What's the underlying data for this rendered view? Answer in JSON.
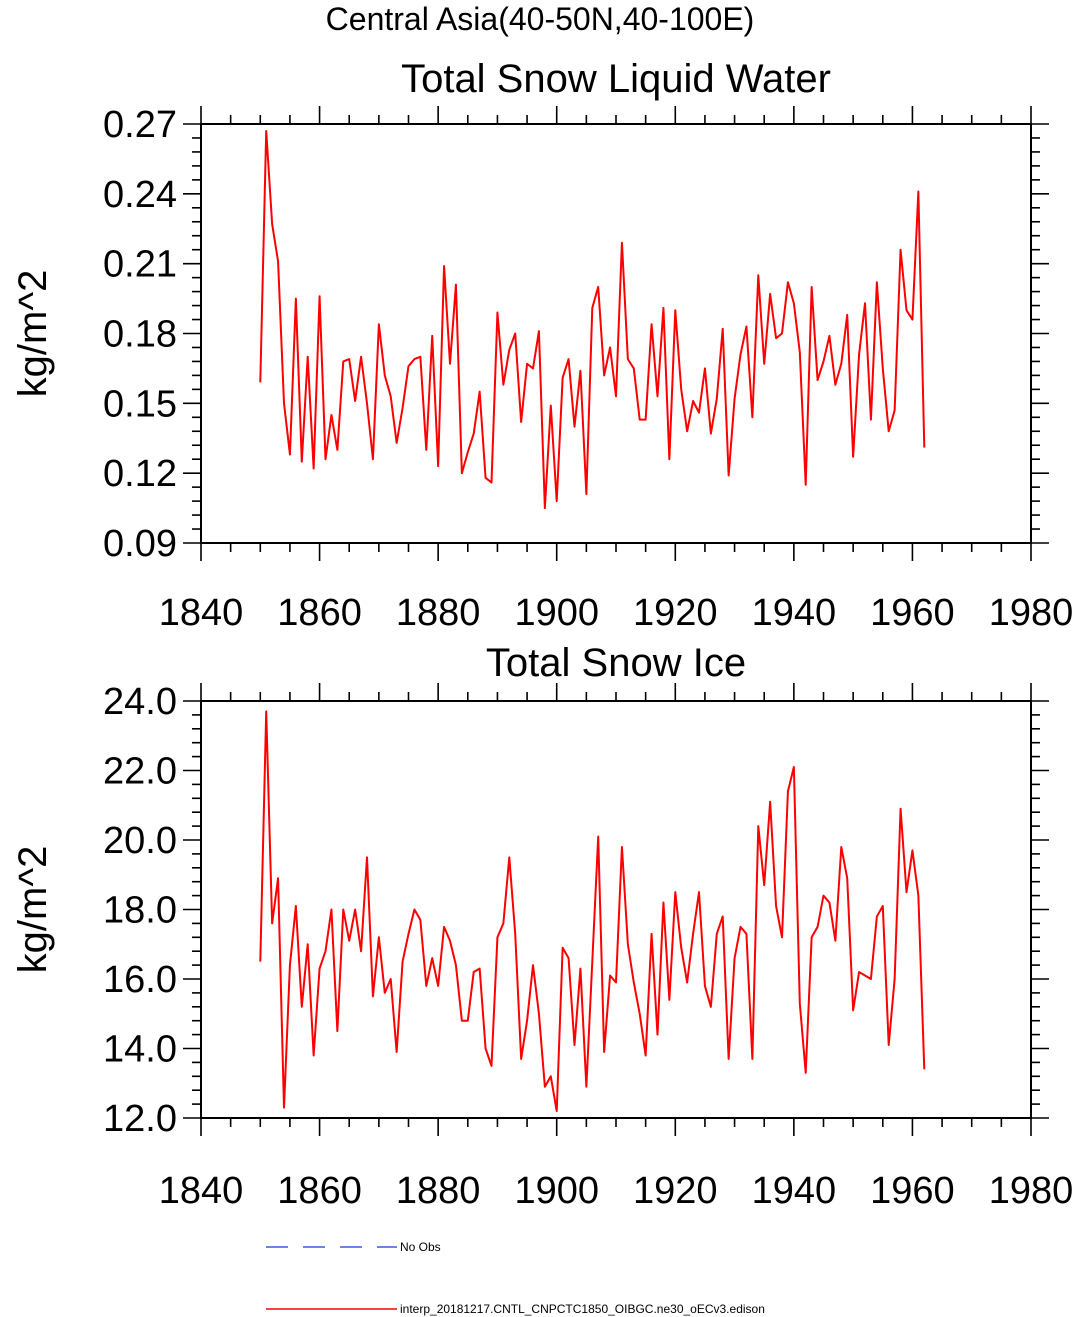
{
  "super_title": "Central Asia(40-50N,40-100E)",
  "chart_data": [
    {
      "type": "line",
      "title": "Total Snow Liquid Water",
      "ylabel": "kg/m^2",
      "xlabel": "",
      "xlim": [
        1840,
        1980
      ],
      "ylim": [
        0.09,
        0.27
      ],
      "xticks": [
        "1840",
        "1860",
        "1880",
        "1900",
        "1920",
        "1940",
        "1960",
        "1980"
      ],
      "yticks": [
        "0.09",
        "0.12",
        "0.15",
        "0.18",
        "0.21",
        "0.24",
        "0.27"
      ],
      "grid": false,
      "series": [
        {
          "color": "#ff0000",
          "x": [
            1850,
            1851,
            1852,
            1853,
            1854,
            1855,
            1856,
            1857,
            1858,
            1859,
            1860,
            1861,
            1862,
            1863,
            1864,
            1865,
            1866,
            1867,
            1868,
            1869,
            1870,
            1871,
            1872,
            1873,
            1874,
            1875,
            1876,
            1877,
            1878,
            1879,
            1880,
            1881,
            1882,
            1883,
            1884,
            1885,
            1886,
            1887,
            1888,
            1889,
            1890,
            1891,
            1892,
            1893,
            1894,
            1895,
            1896,
            1897,
            1898,
            1899,
            1900,
            1901,
            1902,
            1903,
            1904,
            1905,
            1906,
            1907,
            1908,
            1909,
            1910,
            1911,
            1912,
            1913,
            1914,
            1915,
            1916,
            1917,
            1918,
            1919,
            1920,
            1921,
            1922,
            1923,
            1924,
            1925,
            1926,
            1927,
            1928,
            1929,
            1930,
            1931,
            1932,
            1933,
            1934,
            1935,
            1936,
            1937,
            1938,
            1939,
            1940,
            1941,
            1942,
            1943,
            1944,
            1945,
            1946,
            1947,
            1948,
            1949,
            1950,
            1951,
            1952,
            1953,
            1954,
            1955,
            1956,
            1957,
            1958,
            1959,
            1960,
            1961,
            1962
          ],
          "y": [
            0.159,
            0.267,
            0.227,
            0.211,
            0.15,
            0.128,
            0.195,
            0.125,
            0.17,
            0.122,
            0.196,
            0.126,
            0.145,
            0.13,
            0.168,
            0.169,
            0.151,
            0.17,
            0.15,
            0.126,
            0.184,
            0.162,
            0.153,
            0.133,
            0.148,
            0.166,
            0.169,
            0.17,
            0.13,
            0.179,
            0.123,
            0.209,
            0.167,
            0.201,
            0.12,
            0.129,
            0.137,
            0.155,
            0.118,
            0.116,
            0.189,
            0.158,
            0.173,
            0.18,
            0.142,
            0.167,
            0.165,
            0.181,
            0.105,
            0.149,
            0.108,
            0.161,
            0.169,
            0.14,
            0.164,
            0.111,
            0.191,
            0.2,
            0.162,
            0.174,
            0.153,
            0.219,
            0.169,
            0.165,
            0.143,
            0.143,
            0.184,
            0.153,
            0.191,
            0.126,
            0.19,
            0.156,
            0.138,
            0.151,
            0.146,
            0.165,
            0.137,
            0.152,
            0.182,
            0.119,
            0.152,
            0.171,
            0.183,
            0.144,
            0.205,
            0.167,
            0.197,
            0.178,
            0.18,
            0.202,
            0.193,
            0.172,
            0.115,
            0.2,
            0.16,
            0.168,
            0.179,
            0.158,
            0.167,
            0.188,
            0.127,
            0.171,
            0.193,
            0.143,
            0.202,
            0.165,
            0.138,
            0.147,
            0.216,
            0.19,
            0.186,
            0.241,
            0.131
          ]
        }
      ]
    },
    {
      "type": "line",
      "title": "Total Snow Ice",
      "ylabel": "kg/m^2",
      "xlabel": "",
      "xlim": [
        1840,
        1980
      ],
      "ylim": [
        12.0,
        24.0
      ],
      "xticks": [
        "1840",
        "1860",
        "1880",
        "1900",
        "1920",
        "1940",
        "1960",
        "1980"
      ],
      "yticks": [
        "12.0",
        "14.0",
        "16.0",
        "18.0",
        "20.0",
        "22.0",
        "24.0"
      ],
      "grid": false,
      "series": [
        {
          "color": "#ff0000",
          "x": [
            1850,
            1851,
            1852,
            1853,
            1854,
            1855,
            1856,
            1857,
            1858,
            1859,
            1860,
            1861,
            1862,
            1863,
            1864,
            1865,
            1866,
            1867,
            1868,
            1869,
            1870,
            1871,
            1872,
            1873,
            1874,
            1875,
            1876,
            1877,
            1878,
            1879,
            1880,
            1881,
            1882,
            1883,
            1884,
            1885,
            1886,
            1887,
            1888,
            1889,
            1890,
            1891,
            1892,
            1893,
            1894,
            1895,
            1896,
            1897,
            1898,
            1899,
            1900,
            1901,
            1902,
            1903,
            1904,
            1905,
            1906,
            1907,
            1908,
            1909,
            1910,
            1911,
            1912,
            1913,
            1914,
            1915,
            1916,
            1917,
            1918,
            1919,
            1920,
            1921,
            1922,
            1923,
            1924,
            1925,
            1926,
            1927,
            1928,
            1929,
            1930,
            1931,
            1932,
            1933,
            1934,
            1935,
            1936,
            1937,
            1938,
            1939,
            1940,
            1941,
            1942,
            1943,
            1944,
            1945,
            1946,
            1947,
            1948,
            1949,
            1950,
            1951,
            1952,
            1953,
            1954,
            1955,
            1956,
            1957,
            1958,
            1959,
            1960,
            1961,
            1962
          ],
          "y": [
            16.5,
            23.7,
            17.6,
            18.9,
            12.3,
            16.4,
            18.1,
            15.2,
            17.0,
            13.8,
            16.3,
            16.8,
            18.0,
            14.5,
            18.0,
            17.1,
            18.0,
            16.8,
            19.5,
            15.5,
            17.2,
            15.6,
            16.0,
            13.9,
            16.5,
            17.3,
            18.0,
            17.7,
            15.8,
            16.6,
            15.8,
            17.5,
            17.1,
            16.4,
            14.8,
            14.8,
            16.2,
            16.3,
            14.0,
            13.5,
            17.2,
            17.6,
            19.5,
            17.3,
            13.7,
            14.8,
            16.4,
            15.0,
            12.9,
            13.2,
            12.2,
            16.9,
            16.6,
            14.1,
            16.3,
            12.9,
            16.5,
            20.1,
            13.9,
            16.1,
            15.9,
            19.8,
            17.0,
            15.9,
            15.0,
            13.8,
            17.3,
            14.4,
            18.2,
            15.4,
            18.5,
            16.9,
            15.9,
            17.3,
            18.5,
            15.8,
            15.2,
            17.3,
            17.8,
            13.7,
            16.6,
            17.5,
            17.3,
            13.7,
            20.4,
            18.7,
            21.1,
            18.1,
            17.2,
            21.4,
            22.1,
            15.3,
            13.3,
            17.2,
            17.5,
            18.4,
            18.2,
            17.1,
            19.8,
            18.9,
            15.1,
            16.2,
            16.1,
            16.0,
            17.8,
            18.1,
            14.1,
            16.0,
            20.9,
            18.5,
            19.7,
            18.4,
            13.4
          ]
        }
      ]
    }
  ],
  "legend": {
    "placement": "bottom",
    "entries": [
      {
        "label": "No Obs",
        "color": "#3b5bd6",
        "dash": "dashed"
      },
      {
        "label": "interp_20181217.CNTL_CNPCTC1850_OIBGC.ne30_oECv3.edison",
        "color": "#ff0000",
        "dash": "solid"
      }
    ]
  }
}
